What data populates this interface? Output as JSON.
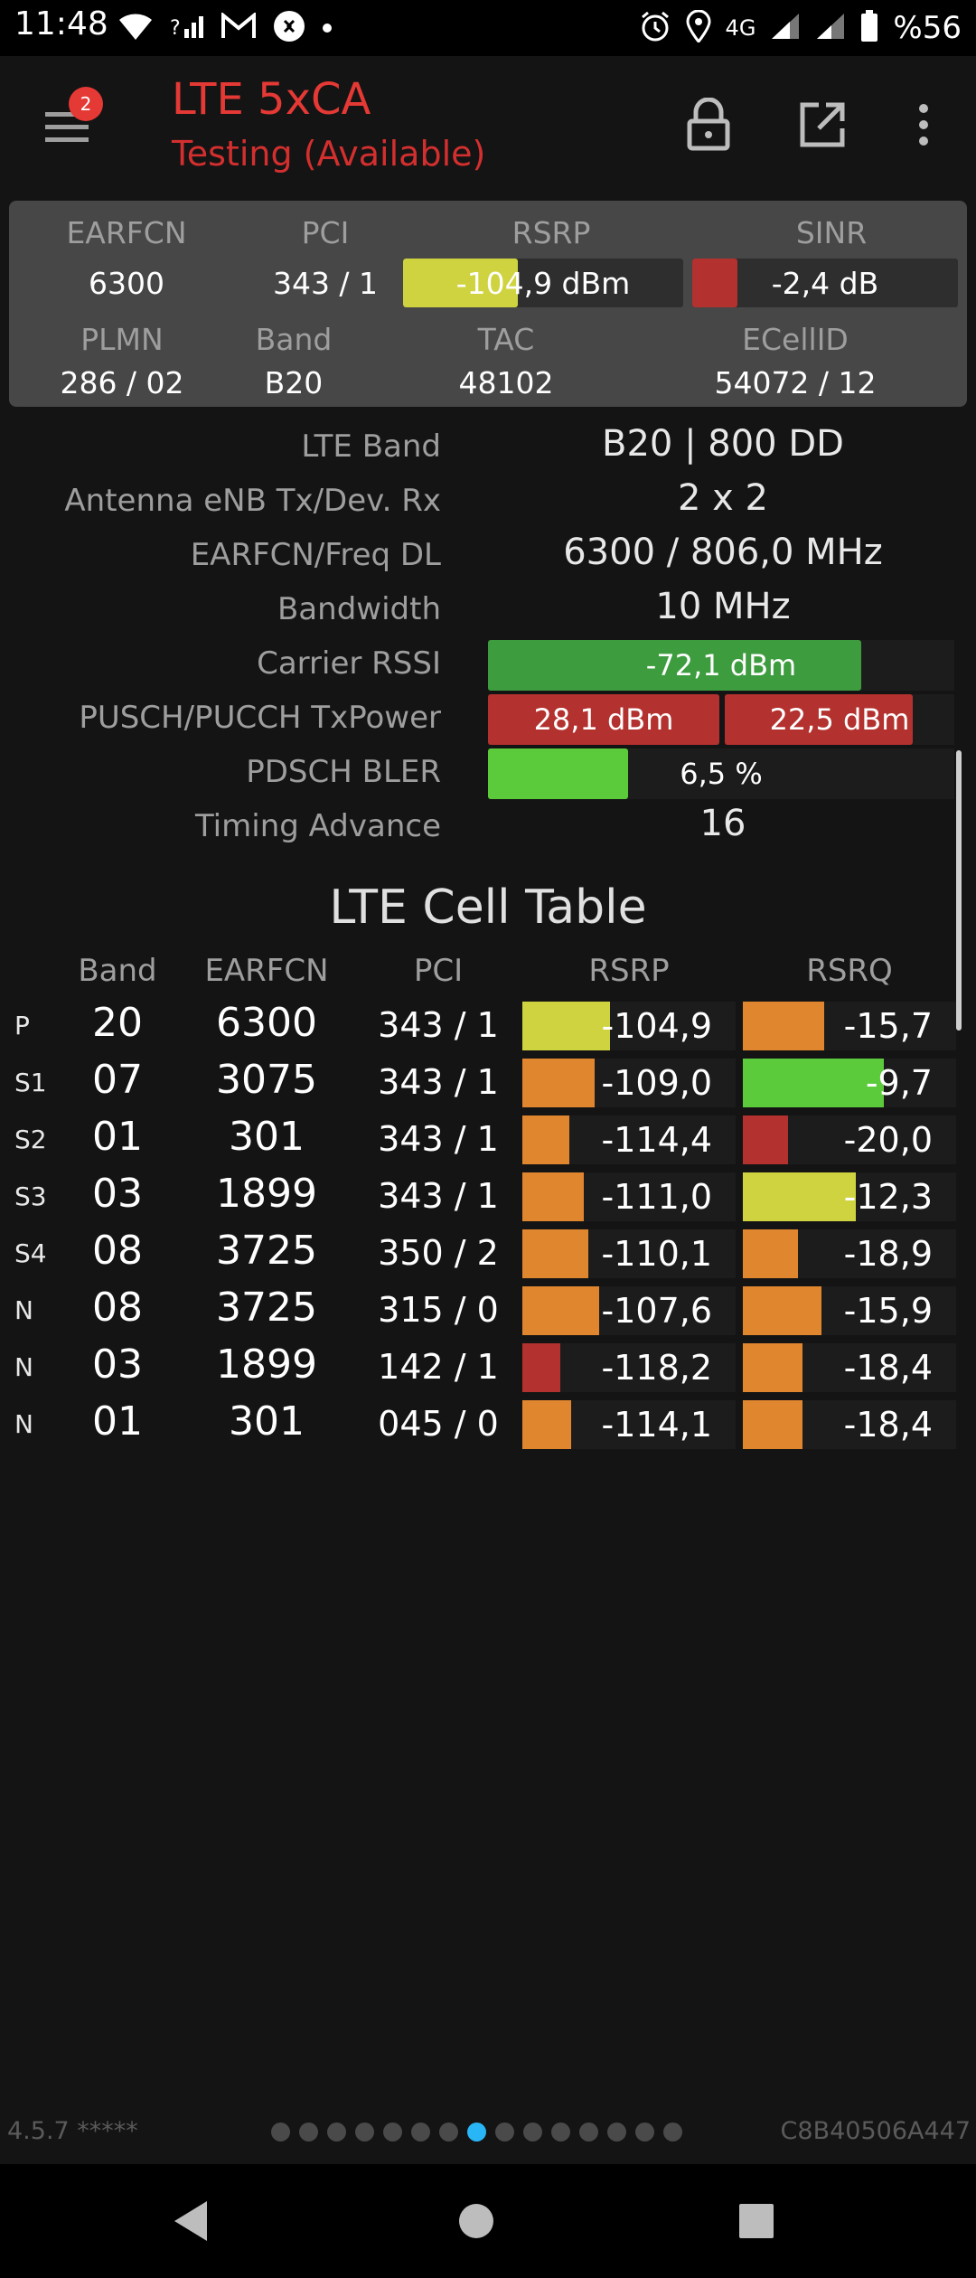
{
  "status_bar": {
    "time": "11:48",
    "network": "4G",
    "battery": "%56",
    "left_icons": [
      "wifi-icon",
      "no-data-signal-icon",
      "gmail-icon",
      "shazam-icon",
      "dot-icon"
    ],
    "right_icons": [
      "alarm-icon",
      "location-icon",
      "signal-icon",
      "signal-icon",
      "battery-icon"
    ]
  },
  "app_bar": {
    "title": "LTE 5xCA",
    "subtitle": "Testing (Available)",
    "menu_badge": "2",
    "actions": [
      "lock-icon",
      "open-external-icon",
      "more-vert-icon"
    ]
  },
  "summary": {
    "labels": {
      "earfcn": "EARFCN",
      "pci": "PCI",
      "rsrp": "RSRP",
      "sinr": "SINR",
      "plmn": "PLMN",
      "band": "Band",
      "tac": "TAC",
      "ecellid": "ECellID"
    },
    "earfcn": "6300",
    "pci": "343 / 1",
    "rsrp": {
      "text": "-104,9 dBm",
      "level": 0.41,
      "color": "#cfd33f"
    },
    "sinr": {
      "text": "-2,4 dB",
      "level": 0.17,
      "color": "#b3312e"
    },
    "plmn": "286 / 02",
    "band": "B20",
    "tac": "48102",
    "ecellid": "54072 / 12"
  },
  "details": {
    "lte_band": {
      "label": "LTE Band",
      "value": "B20 | 800 DD"
    },
    "antenna": {
      "label": "Antenna eNB Tx/Dev. Rx",
      "value": "2 x 2"
    },
    "earfcn_freq": {
      "label": "EARFCN/Freq DL",
      "value": "6300 / 806,0 MHz"
    },
    "bandwidth": {
      "label": "Bandwidth",
      "value": "10 MHz"
    },
    "carrier_rssi": {
      "label": "Carrier RSSI",
      "value": "-72,1 dBm",
      "level": 0.8,
      "color": "#3d9c3e"
    },
    "txpower": {
      "label": "PUSCH/PUCCH TxPower",
      "pusch": {
        "value": "28,1 dBm",
        "level": 1.0,
        "color": "#b3312e"
      },
      "pucch": {
        "value": "22,5 dBm",
        "level": 0.82,
        "color": "#b3312e"
      }
    },
    "bler": {
      "label": "PDSCH BLER",
      "value": "6,5 %",
      "level": 0.3,
      "color": "#5ccb3b"
    },
    "timing_advance": {
      "label": "Timing Advance",
      "value": "16"
    }
  },
  "cell_table": {
    "title": "LTE Cell Table",
    "headers": {
      "band": "Band",
      "earfcn": "EARFCN",
      "pci": "PCI",
      "rsrp": "RSRP",
      "rsrq": "RSRQ"
    },
    "rows": [
      {
        "type": "P",
        "band": "20",
        "earfcn": "6300",
        "pci": "343 / 1",
        "rsrp": "-104,9",
        "rsrp_level": 0.41,
        "rsrp_color": "#cfd33f",
        "rsrq": "-15,7",
        "rsrq_level": 0.38,
        "rsrq_color": "#e0862f"
      },
      {
        "type": "S1",
        "band": "07",
        "earfcn": "3075",
        "pci": "343 / 1",
        "rsrp": "-109,0",
        "rsrp_level": 0.34,
        "rsrp_color": "#e0862f",
        "rsrq": "-9,7",
        "rsrq_level": 0.66,
        "rsrq_color": "#5ccb3b"
      },
      {
        "type": "S2",
        "band": "01",
        "earfcn": "301",
        "pci": "343 / 1",
        "rsrp": "-114,4",
        "rsrp_level": 0.22,
        "rsrp_color": "#e0862f",
        "rsrq": "-20,0",
        "rsrq_level": 0.21,
        "rsrq_color": "#b3312e"
      },
      {
        "type": "S3",
        "band": "03",
        "earfcn": "1899",
        "pci": "343 / 1",
        "rsrp": "-111,0",
        "rsrp_level": 0.29,
        "rsrp_color": "#e0862f",
        "rsrq": "-12,3",
        "rsrq_level": 0.53,
        "rsrq_color": "#cfd33f"
      },
      {
        "type": "S4",
        "band": "08",
        "earfcn": "3725",
        "pci": "350 / 2",
        "rsrp": "-110,1",
        "rsrp_level": 0.31,
        "rsrp_color": "#e0862f",
        "rsrq": "-18,9",
        "rsrq_level": 0.26,
        "rsrq_color": "#e0862f"
      },
      {
        "type": "N",
        "band": "08",
        "earfcn": "3725",
        "pci": "315 / 0",
        "rsrp": "-107,6",
        "rsrp_level": 0.36,
        "rsrp_color": "#e0862f",
        "rsrq": "-15,9",
        "rsrq_level": 0.37,
        "rsrq_color": "#e0862f"
      },
      {
        "type": "N",
        "band": "03",
        "earfcn": "1899",
        "pci": "142 / 1",
        "rsrp": "-118,2",
        "rsrp_level": 0.18,
        "rsrp_color": "#b3312e",
        "rsrq": "-18,4",
        "rsrq_level": 0.28,
        "rsrq_color": "#e0862f"
      },
      {
        "type": "N",
        "band": "01",
        "earfcn": "301",
        "pci": "045 / 0",
        "rsrp": "-114,1",
        "rsrp_level": 0.23,
        "rsrp_color": "#e0862f",
        "rsrq": "-18,4",
        "rsrq_level": 0.28,
        "rsrq_color": "#e0862f"
      }
    ]
  },
  "footer": {
    "version": "4.5.7 *****",
    "device_id": "C8B40506A447",
    "page_count": 15,
    "active_page": 7
  },
  "nav_bar": [
    "back-icon",
    "home-icon",
    "recents-icon"
  ]
}
